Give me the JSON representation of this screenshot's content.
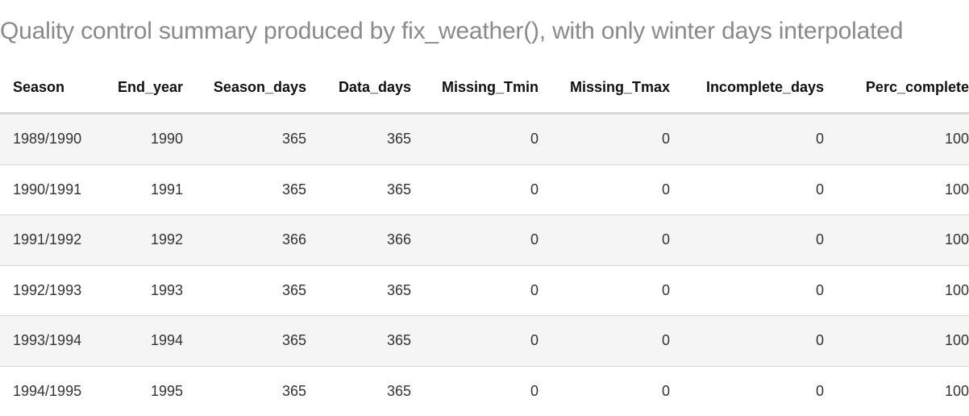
{
  "caption": "Quality control summary produced by fix_weather(), with only winter days interpolated",
  "table": {
    "headers": [
      "Season",
      "End_year",
      "Season_days",
      "Data_days",
      "Missing_Tmin",
      "Missing_Tmax",
      "Incomplete_days",
      "Perc_complete"
    ],
    "rows": [
      [
        "1989/1990",
        "1990",
        "365",
        "365",
        "0",
        "0",
        "0",
        "100"
      ],
      [
        "1990/1991",
        "1991",
        "365",
        "365",
        "0",
        "0",
        "0",
        "100"
      ],
      [
        "1991/1992",
        "1992",
        "366",
        "366",
        "0",
        "0",
        "0",
        "100"
      ],
      [
        "1992/1993",
        "1993",
        "365",
        "365",
        "0",
        "0",
        "0",
        "100"
      ],
      [
        "1993/1994",
        "1994",
        "365",
        "365",
        "0",
        "0",
        "0",
        "100"
      ],
      [
        "1994/1995",
        "1995",
        "365",
        "365",
        "0",
        "0",
        "0",
        "100"
      ]
    ]
  }
}
